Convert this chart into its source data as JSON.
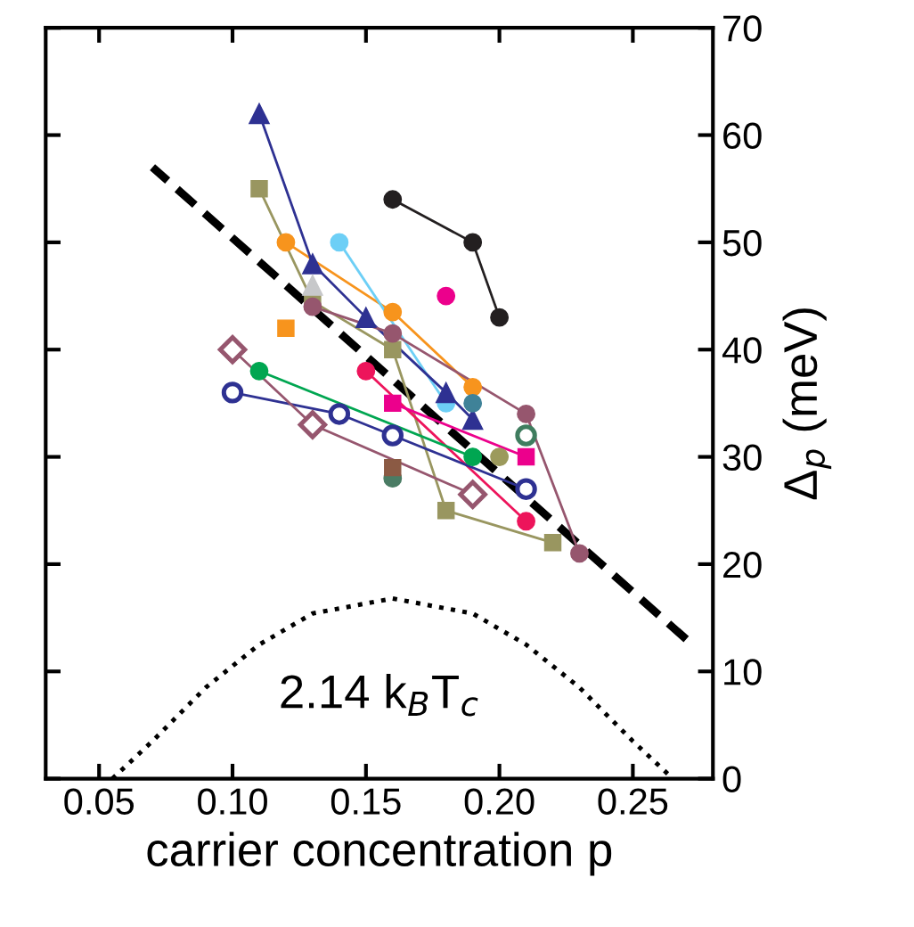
{
  "chart_data": {
    "type": "line",
    "xlabel": "carrier concentration p",
    "ylabel": "Δ$_{p}$ (meV)",
    "xlim": [
      0.03,
      0.28
    ],
    "xticks": [
      {
        "value": 0.05,
        "label": "0.05"
      },
      {
        "value": 0.1,
        "label": "0.10"
      },
      {
        "value": 0.15,
        "label": "0.15"
      },
      {
        "value": 0.2,
        "label": "0.20"
      },
      {
        "value": 0.25,
        "label": "0.25"
      }
    ],
    "ylim": [
      0,
      70
    ],
    "yticks": [
      0,
      10,
      20,
      30,
      40,
      50,
      60,
      70
    ],
    "grid": false,
    "legend": false,
    "annotations": [
      "2.14 k$_{B}$T$_{c}$"
    ],
    "series": [
      {
        "line_style": "dashed",
        "marker": "none",
        "color": "#000000",
        "x": [
          0.07,
          0.27
        ],
        "values": [
          57,
          13
        ]
      },
      {
        "line_style": "dotted",
        "marker": "none",
        "color": "#000000",
        "x": [
          0.055,
          0.07,
          0.09,
          0.11,
          0.13,
          0.16,
          0.19,
          0.21,
          0.23,
          0.25,
          0.265
        ],
        "values": [
          0,
          3.5,
          8.5,
          12.5,
          15.4,
          16.8,
          15.4,
          12.5,
          8.5,
          3.5,
          0
        ]
      },
      {
        "marker": "circle",
        "color": "#231f20",
        "x": [
          0.16,
          0.19,
          0.2
        ],
        "values": [
          54,
          50,
          43
        ]
      },
      {
        "type": "line",
        "marker": "square",
        "color": "#999660",
        "x": [
          0.11,
          0.13,
          0.16,
          0.18,
          0.22
        ],
        "values": [
          55,
          44.5,
          40,
          25,
          22
        ]
      },
      {
        "type": "line",
        "marker": "circle",
        "color": "#f7941d",
        "x": [
          0.12,
          0.16,
          0.19
        ],
        "values": [
          50,
          43.5,
          36.5
        ]
      },
      {
        "type": "line",
        "marker": "circle",
        "color": "#6dcff6",
        "x": [
          0.14,
          0.18
        ],
        "values": [
          50,
          35
        ]
      },
      {
        "type": "line",
        "marker": "triangle",
        "color": "#2e3192",
        "x": [
          0.11,
          0.13,
          0.15,
          0.18,
          0.19
        ],
        "values": [
          62,
          48,
          43,
          36,
          33.5
        ]
      },
      {
        "type": "scatter",
        "marker": "triangle",
        "color": "#c7c8ca",
        "x": [
          0.13
        ],
        "values": [
          46
        ]
      },
      {
        "type": "line",
        "marker": "circle",
        "color": "#96566e",
        "x": [
          0.13,
          0.16,
          0.21,
          0.23
        ],
        "values": [
          44,
          41.5,
          34,
          21
        ]
      },
      {
        "type": "scatter",
        "marker": "square",
        "color": "#f7941d",
        "x": [
          0.12
        ],
        "values": [
          42
        ]
      },
      {
        "type": "scatter",
        "marker": "circle",
        "color": "#ec008c",
        "x": [
          0.18
        ],
        "values": [
          45
        ]
      },
      {
        "type": "line",
        "marker": "circle",
        "color": "#ed145b",
        "x": [
          0.15,
          0.21
        ],
        "values": [
          38,
          24
        ]
      },
      {
        "type": "line",
        "marker": "square",
        "color": "#ec008c",
        "x": [
          0.16,
          0.21
        ],
        "values": [
          35,
          30
        ]
      },
      {
        "type": "scatter",
        "marker": "circle",
        "color": "#3f8298",
        "x": [
          0.19
        ],
        "values": [
          35
        ]
      },
      {
        "type": "line",
        "marker": "circle",
        "color": "#00a651",
        "x": [
          0.11,
          0.19
        ],
        "values": [
          38,
          30
        ]
      },
      {
        "type": "scatter",
        "marker": "circle",
        "color": "#9c9a5c",
        "x": [
          0.2
        ],
        "values": [
          30
        ]
      },
      {
        "marker": "circle",
        "color": "#2e3192",
        "colors": [
          "#ffffff",
          "#ffffff",
          "#ffffff",
          "#ffffff"
        ],
        "x": [
          0.1,
          0.14,
          0.16,
          0.21
        ],
        "values": [
          36,
          34,
          32,
          27
        ]
      },
      {
        "type": "scatter",
        "marker": "circle",
        "color": "#3f7d5f",
        "colors": [
          "#ffffff"
        ],
        "x": [
          0.21
        ],
        "values": [
          32
        ]
      },
      {
        "marker": "diamond",
        "color": "#96566e",
        "colors": [
          "#ffffff",
          "#ffffff",
          "#ffffff"
        ],
        "x": [
          0.1,
          0.13,
          0.19
        ],
        "values": [
          40,
          33,
          26.5
        ]
      },
      {
        "type": "scatter",
        "marker": "circle",
        "color": "#4a7c64",
        "x": [
          0.16
        ],
        "values": [
          28
        ]
      },
      {
        "type": "scatter",
        "marker": "square",
        "color": "#8b5a44",
        "x": [
          0.16
        ],
        "values": [
          29
        ]
      }
    ]
  }
}
